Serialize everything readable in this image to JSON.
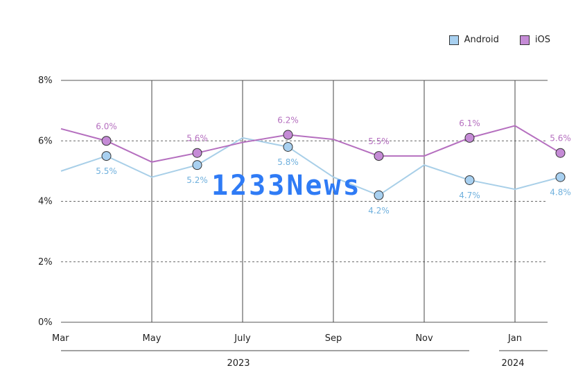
{
  "chart_data": {
    "type": "line",
    "x": [
      "2023-03",
      "2023-04",
      "2023-05",
      "2023-06",
      "2023-07",
      "2023-08",
      "2023-09",
      "2023-10",
      "2023-11",
      "2023-12",
      "2024-01",
      "2024-02"
    ],
    "x_tick_labels": [
      "Mar",
      "May",
      "July",
      "Sep",
      "Nov",
      "Jan"
    ],
    "x_group_labels": [
      "2023",
      "2024"
    ],
    "ylim": [
      0,
      8
    ],
    "y_tick_labels": [
      "0%",
      "2%",
      "4%",
      "6%",
      "8%"
    ],
    "series": [
      {
        "name": "Android",
        "color": "#a8cfe8",
        "values": [
          5.0,
          5.5,
          4.8,
          5.2,
          6.1,
          5.8,
          4.8,
          4.2,
          5.2,
          4.7,
          4.4,
          4.8
        ],
        "labels": [
          "",
          "5.5%",
          "",
          "5.2%",
          "",
          "5.8%",
          "",
          "4.2%",
          "",
          "4.7%",
          "",
          "4.8%"
        ]
      },
      {
        "name": "iOS",
        "color": "#b56fbf",
        "values": [
          6.4,
          6.0,
          5.3,
          5.6,
          5.95,
          6.2,
          6.05,
          5.5,
          5.5,
          6.1,
          6.5,
          5.6
        ],
        "labels": [
          "",
          "6.0%",
          "",
          "5.6%",
          "",
          "6.2%",
          "",
          "5.5%",
          "",
          "6.1%",
          "",
          "5.6%"
        ]
      }
    ],
    "legend_position": "top-right"
  },
  "legend": {
    "android_label": "Android",
    "ios_label": "iOS",
    "android_color": "#a8d0f0",
    "ios_color": "#c58bd6"
  },
  "watermark": "1233News"
}
